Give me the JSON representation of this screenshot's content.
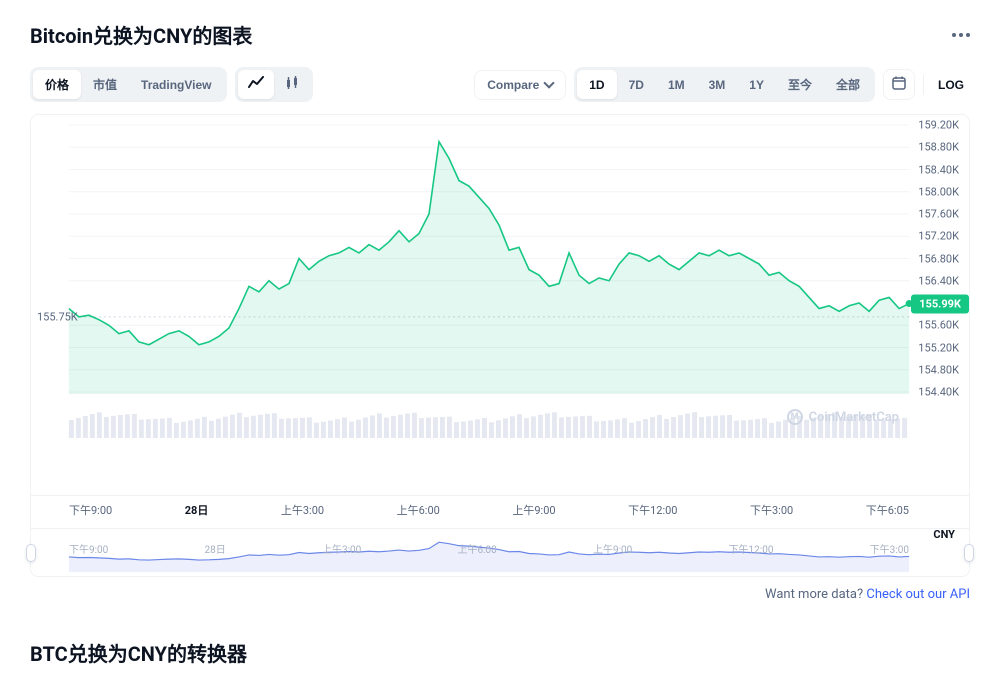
{
  "title": "Bitcoin兑换为CNY的图表",
  "toolbar": {
    "view_tabs": [
      "价格",
      "市值",
      "TradingView"
    ],
    "view_active": 0,
    "compare_label": "Compare",
    "ranges": [
      "1D",
      "7D",
      "1M",
      "3M",
      "1Y",
      "至今",
      "全部"
    ],
    "range_active": 0,
    "log_label": "LOG"
  },
  "chart": {
    "type": "area",
    "color_up": "#16c784",
    "color_down": "#ea3943",
    "fill_up": "rgba(22,199,132,0.12)",
    "background": "#ffffff",
    "grid_color": "#f2f4f7",
    "ref_color": "#cfd6e4",
    "ymin": 154.4,
    "ymax": 159.2,
    "ytick_step": 0.4,
    "yticks": [
      159.2,
      158.8,
      158.4,
      158.0,
      157.6,
      157.2,
      156.8,
      156.4,
      155.6,
      155.2,
      154.8,
      154.4
    ],
    "ref_value": 155.75,
    "current_value": 155.99,
    "x_labels": [
      "下午9:00",
      "28日",
      "上午3:00",
      "上午6:00",
      "上午9:00",
      "下午12:00",
      "下午3:00",
      "下午6:05"
    ],
    "x_bold_idx": 1,
    "x_unit": "CNY",
    "series": [
      155.9,
      155.75,
      155.78,
      155.7,
      155.6,
      155.45,
      155.5,
      155.3,
      155.25,
      155.35,
      155.45,
      155.5,
      155.4,
      155.25,
      155.3,
      155.4,
      155.55,
      155.9,
      156.3,
      156.2,
      156.4,
      156.25,
      156.35,
      156.8,
      156.6,
      156.75,
      156.85,
      156.9,
      157.0,
      156.9,
      157.05,
      156.95,
      157.1,
      157.3,
      157.1,
      157.25,
      157.6,
      158.9,
      158.6,
      158.2,
      158.1,
      157.9,
      157.7,
      157.4,
      156.95,
      157.0,
      156.6,
      156.5,
      156.3,
      156.35,
      156.9,
      156.5,
      156.35,
      156.45,
      156.4,
      156.7,
      156.9,
      156.85,
      156.75,
      156.85,
      156.7,
      156.6,
      156.75,
      156.9,
      156.85,
      156.95,
      156.85,
      156.9,
      156.8,
      156.7,
      156.5,
      156.55,
      156.4,
      156.3,
      156.1,
      155.9,
      155.95,
      155.85,
      155.95,
      156.0,
      155.85,
      156.05,
      156.1,
      155.9,
      155.99
    ],
    "volume_bars": 120,
    "volume_color": "#cfd6e4"
  },
  "brush": {
    "labels": [
      "下午9:00",
      "28日",
      "上午3:00",
      "上午6:00",
      "上午9:00",
      "下午12:00",
      "下午3:00"
    ],
    "line_color": "#6b87e8"
  },
  "watermark": "CoinMarketCap",
  "footer": {
    "text": "Want more data? ",
    "link": "Check out our API"
  },
  "subhead": "BTC兑换为CNY的转换器"
}
